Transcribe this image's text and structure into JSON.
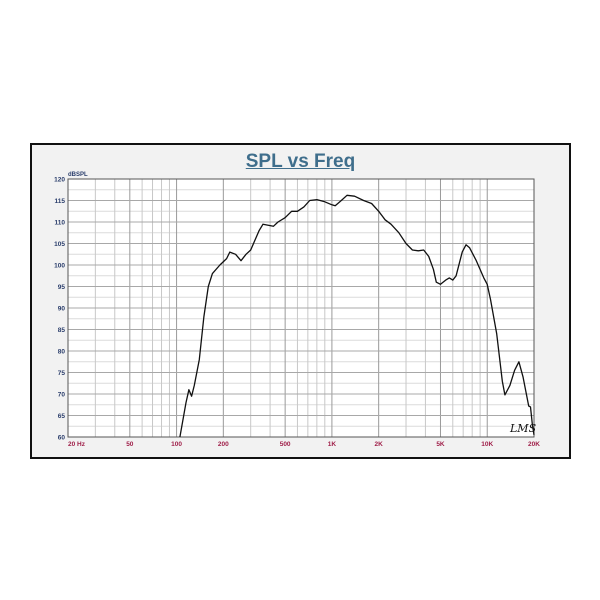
{
  "chart_data": {
    "type": "line",
    "title": "SPL vs Freq",
    "ylabel": "dBSPL",
    "xscale": "log",
    "xlim": [
      20,
      20000
    ],
    "ylim": [
      60,
      120
    ],
    "grid": true,
    "x_ticks": [
      20,
      50,
      100,
      200,
      500,
      1000,
      2000,
      5000,
      10000,
      20000
    ],
    "x_tick_labels": [
      "20  Hz",
      "50",
      "100",
      "200",
      "500",
      "1K",
      "2K",
      "5K",
      "10K",
      "20K"
    ],
    "y_ticks": [
      60,
      65,
      70,
      75,
      80,
      85,
      90,
      95,
      100,
      105,
      110,
      115,
      120
    ],
    "y_tick_labels": [
      "60",
      "65",
      "70",
      "75",
      "80",
      "85",
      "90",
      "95",
      "100",
      "105",
      "110",
      "115",
      "120"
    ],
    "line_color": "#111111",
    "series": [
      {
        "x": [
          105,
          115,
          120,
          125,
          130,
          140,
          150,
          160,
          170,
          190,
          210,
          220,
          240,
          260,
          280,
          300,
          340,
          360,
          420,
          450,
          500,
          550,
          600,
          660,
          720,
          800,
          900,
          1000,
          1050,
          1150,
          1250,
          1400,
          1600,
          1800,
          2000,
          2200,
          2400,
          2700,
          3000,
          3300,
          3600,
          3900,
          4200,
          4500,
          4700,
          5000,
          5400,
          5700,
          6000,
          6300,
          6900,
          7300,
          7700,
          8500,
          9500,
          10000,
          10500,
          11500,
          12500,
          13000,
          14000,
          15000,
          16000,
          17000,
          18500,
          19000,
          19500,
          20000
        ],
        "y": [
          60,
          68,
          71,
          69.5,
          72,
          78,
          88,
          95,
          98,
          100,
          101.5,
          103,
          102.5,
          101,
          102.5,
          103.5,
          108,
          109.5,
          109,
          110,
          111,
          112.5,
          112.5,
          113.5,
          115,
          115.2,
          114.7,
          114,
          113.8,
          115,
          116.2,
          116,
          115,
          114.3,
          112.5,
          110.5,
          109.5,
          107.5,
          105,
          103.5,
          103.3,
          103.5,
          102,
          99,
          96,
          95.5,
          96.5,
          97,
          96.5,
          97.5,
          103,
          104.7,
          104,
          101,
          97,
          95.5,
          92,
          84,
          73,
          69.8,
          72,
          75.5,
          77.5,
          74,
          67.2,
          67,
          63,
          60.5
        ]
      }
    ],
    "logo": "LMS"
  }
}
